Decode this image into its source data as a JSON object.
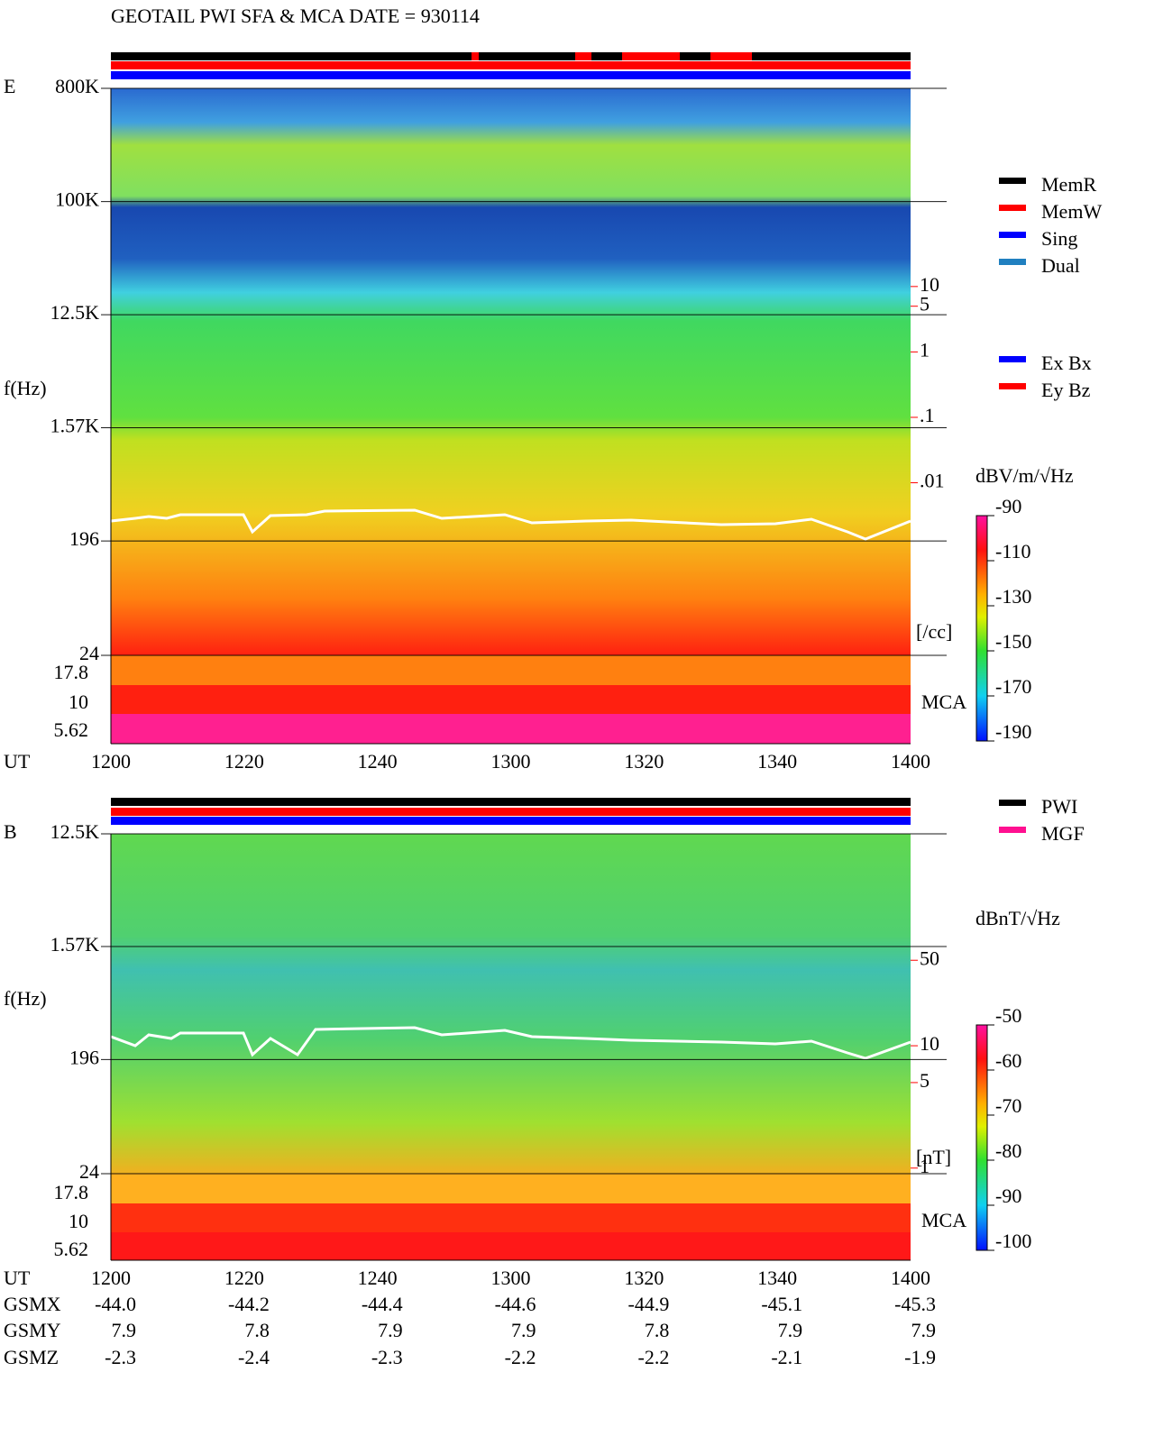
{
  "title": "GEOTAIL  PWI SFA & MCA   DATE = 930114",
  "chart_data": [
    {
      "type": "spectrogram",
      "panel_label": "E",
      "y_label": "f(Hz)",
      "x_label": "UT",
      "log_scale": true,
      "ylim": [
        24,
        800000
      ],
      "yticks": [
        {
          "value": 800000,
          "label": "800K"
        },
        {
          "value": 100000,
          "label": "100K"
        },
        {
          "value": 12500,
          "label": "12.5K"
        },
        {
          "value": 1570,
          "label": "1.57K"
        },
        196,
        24
      ],
      "mca_channels": [
        17.8,
        10,
        5.62
      ],
      "mca_label": "MCA",
      "categories": [
        "1200",
        "1220",
        "1240",
        "1300",
        "1320",
        "1340",
        "1400"
      ],
      "y2lim": [
        2.3e-05,
        10700
      ],
      "y2ticks": [
        10,
        5,
        1,
        {
          "value": 0.1,
          "label": ".1"
        },
        {
          "value": 0.01,
          "label": ".01"
        }
      ],
      "y2_label": "[/cc]",
      "y2_color": "#ff0000",
      "colorbar": {
        "label": "dBV/m/√Hz",
        "lim": [
          -190,
          -90
        ],
        "ticks": [
          -90,
          -110,
          -130,
          -150,
          -170,
          -190
        ]
      },
      "legend": [
        {
          "name": "MemR",
          "color": "#000000"
        },
        {
          "name": "MemW",
          "color": "#ff0000"
        },
        {
          "name": "Sing",
          "color": "#0000ff"
        },
        {
          "name": "Dual",
          "color": "#2080c0"
        }
      ],
      "legend2": [
        {
          "name": "Ex Bx",
          "color": "#0000ff"
        },
        {
          "name": "Ey Bz",
          "color": "#ff0000"
        }
      ]
    },
    {
      "type": "spectrogram",
      "panel_label": "B",
      "y_label": "f(Hz)",
      "x_label": "UT",
      "log_scale": true,
      "ylim": [
        24,
        12500
      ],
      "yticks": [
        {
          "value": 12500,
          "label": "12.5K"
        },
        {
          "value": 1570,
          "label": "1.57K"
        },
        196,
        24
      ],
      "mca_channels": [
        17.8,
        10,
        5.62
      ],
      "mca_label": "MCA",
      "categories": [
        "1200",
        "1220",
        "1240",
        "1300",
        "1320",
        "1340",
        "1400"
      ],
      "y2lim": [
        0.9,
        540
      ],
      "y2ticks": [
        50,
        10,
        5,
        1
      ],
      "y2_label": "[nT]",
      "y2_color": "#ff0000",
      "colorbar": {
        "label": "dBnT/√Hz",
        "lim": [
          -100,
          -50
        ],
        "ticks": [
          -50,
          -60,
          -70,
          -80,
          -90,
          -100
        ]
      },
      "legend": [
        {
          "name": "PWI",
          "color": "#000000"
        },
        {
          "name": "MGF",
          "color": "#ff1090"
        }
      ]
    }
  ],
  "orbit": {
    "rows": [
      {
        "label": "GSMX",
        "values": [
          "-44.0",
          "-44.2",
          "-44.4",
          "-44.6",
          "-44.9",
          "-45.1",
          "-45.3"
        ]
      },
      {
        "label": "GSMY",
        "values": [
          "7.9",
          "7.8",
          "7.9",
          "7.9",
          "7.8",
          "7.9",
          "7.9"
        ]
      },
      {
        "label": "GSMZ",
        "values": [
          "-2.3",
          "-2.4",
          "-2.3",
          "-2.2",
          "-2.2",
          "-2.1",
          "-1.9"
        ]
      }
    ]
  }
}
